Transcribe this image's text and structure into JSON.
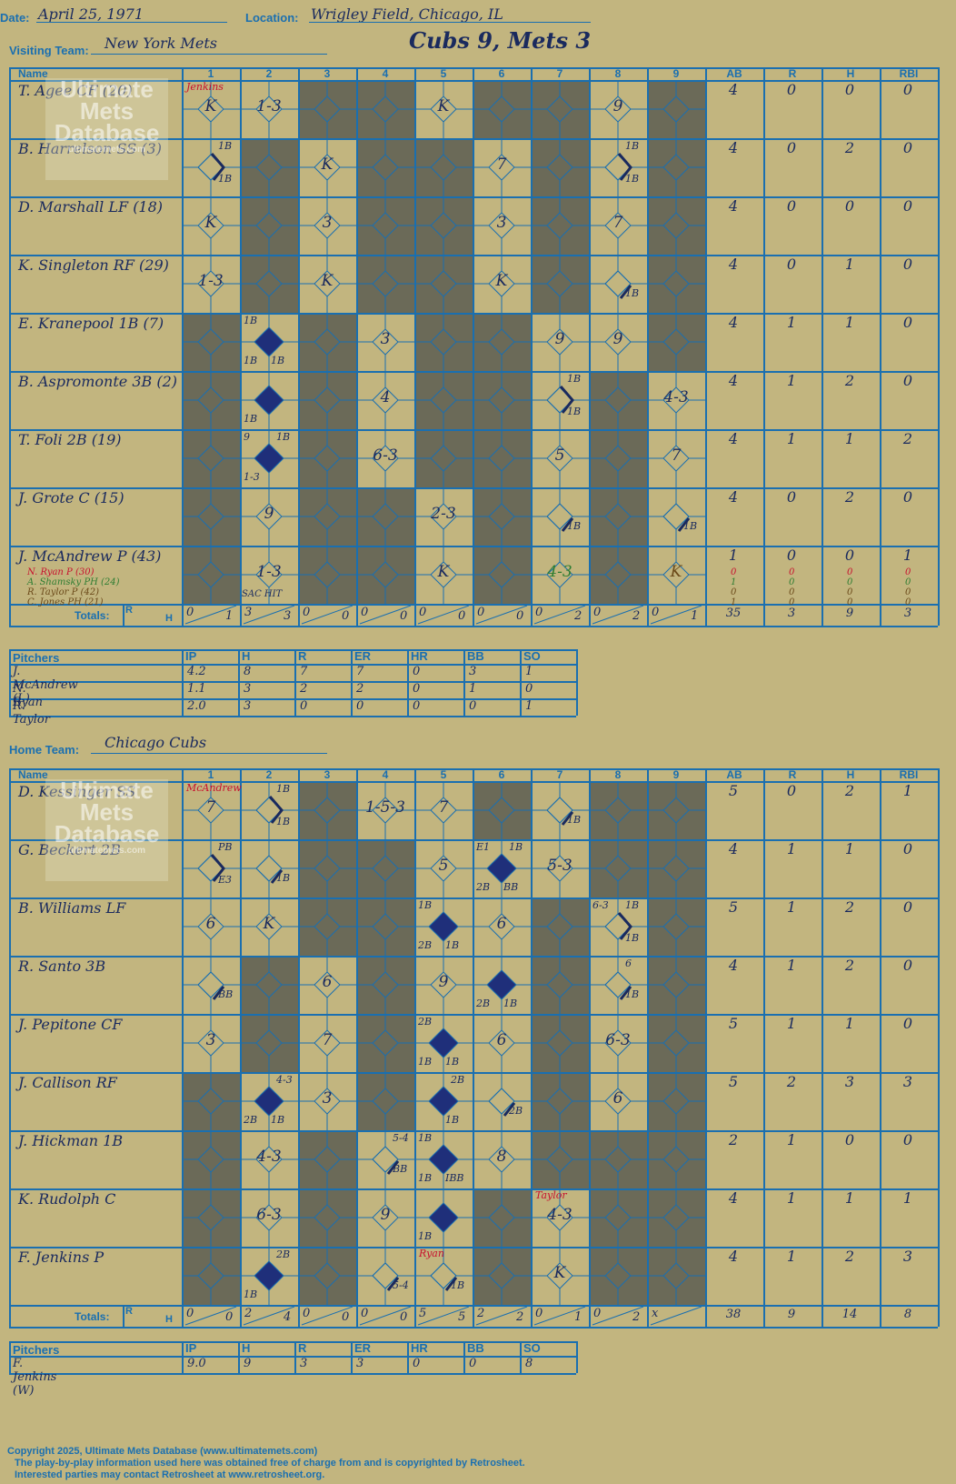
{
  "header": {
    "date_label": "Date:",
    "date_value": "April 25, 1971",
    "location_label": "Location:",
    "location_value": "Wrigley Field, Chicago, IL",
    "visiting_label": "Visiting Team:",
    "visiting_value": "New York Mets",
    "score_title": "Cubs 9, Mets 3",
    "home_label": "Home Team:",
    "home_value": "Chicago Cubs"
  },
  "watermark": {
    "line1": "Ultimate",
    "line2": "Mets",
    "line3": "Database",
    "site": "ultimatemets.com"
  },
  "columns": {
    "name": "Name",
    "innings": [
      "1",
      "2",
      "3",
      "4",
      "5",
      "6",
      "7",
      "8",
      "9"
    ],
    "stats": [
      "AB",
      "R",
      "H",
      "RBI"
    ],
    "totals": "Totals:",
    "r": "R",
    "h": "H"
  },
  "visitors": {
    "players": [
      {
        "name": "T. Agee CF (20)",
        "ab": "4",
        "r": "0",
        "h": "0",
        "rbi": "0"
      },
      {
        "name": "B. Harrelson SS (3)",
        "ab": "4",
        "r": "0",
        "h": "2",
        "rbi": "0"
      },
      {
        "name": "D. Marshall LF (18)",
        "ab": "4",
        "r": "0",
        "h": "0",
        "rbi": "0"
      },
      {
        "name": "K. Singleton RF (29)",
        "ab": "4",
        "r": "0",
        "h": "1",
        "rbi": "0"
      },
      {
        "name": "E. Kranepool 1B (7)",
        "ab": "4",
        "r": "1",
        "h": "1",
        "rbi": "0"
      },
      {
        "name": "B. Aspromonte 3B (2)",
        "ab": "4",
        "r": "1",
        "h": "2",
        "rbi": "0"
      },
      {
        "name": "T. Foli 2B (19)",
        "ab": "4",
        "r": "1",
        "h": "1",
        "rbi": "2"
      },
      {
        "name": "J. Grote C (15)",
        "ab": "4",
        "r": "0",
        "h": "2",
        "rbi": "0"
      },
      {
        "name": "J. McAndrew P (43)",
        "ab": "1",
        "r": "0",
        "h": "0",
        "rbi": "1"
      }
    ],
    "subs": [
      {
        "name": "N. Ryan P (30)",
        "color": "#c8102e",
        "ab": "0",
        "r": "0",
        "h": "0",
        "rbi": "0"
      },
      {
        "name": "A. Shamsky PH (24)",
        "color": "#2e7d32",
        "ab": "1",
        "r": "0",
        "h": "0",
        "rbi": "0"
      },
      {
        "name": "R. Taylor P (42)",
        "color": "#6b4a1a",
        "ab": "0",
        "r": "0",
        "h": "0",
        "rbi": "0"
      },
      {
        "name": "C. Jones PH (21)",
        "color": "#6b4a1a",
        "ab": "1",
        "r": "0",
        "h": "0",
        "rbi": "0"
      }
    ],
    "pitcher_change_note": "Jenkins",
    "totals": {
      "innings": [
        [
          "0",
          "1"
        ],
        [
          "3",
          "3"
        ],
        [
          "0",
          "0"
        ],
        [
          "0",
          "0"
        ],
        [
          "0",
          "0"
        ],
        [
          "0",
          "0"
        ],
        [
          "0",
          "2"
        ],
        [
          "0",
          "2"
        ],
        [
          "0",
          "1"
        ]
      ],
      "ab": "35",
      "r": "3",
      "h": "9",
      "rbi": "3"
    },
    "plays": [
      {
        "row": 0,
        "inn": 0,
        "text": "K"
      },
      {
        "row": 0,
        "inn": 1,
        "text": "1-3"
      },
      {
        "row": 0,
        "inn": 4,
        "text": "K"
      },
      {
        "row": 0,
        "inn": 7,
        "text": "9"
      },
      {
        "row": 1,
        "inn": 0,
        "hit": "1B",
        "extra": "1B"
      },
      {
        "row": 1,
        "inn": 2,
        "text": "K"
      },
      {
        "row": 1,
        "inn": 5,
        "text": "7"
      },
      {
        "row": 1,
        "inn": 7,
        "hit": "1B",
        "extra": "1B"
      },
      {
        "row": 2,
        "inn": 0,
        "text": "K"
      },
      {
        "row": 2,
        "inn": 2,
        "text": "3"
      },
      {
        "row": 2,
        "inn": 5,
        "text": "3"
      },
      {
        "row": 2,
        "inn": 7,
        "text": "7"
      },
      {
        "row": 3,
        "inn": 0,
        "text": "1-3"
      },
      {
        "row": 3,
        "inn": 2,
        "text": "K"
      },
      {
        "row": 3,
        "inn": 5,
        "text": "K"
      },
      {
        "row": 3,
        "inn": 7,
        "hit": "1B"
      },
      {
        "row": 4,
        "inn": 1,
        "run": true,
        "tl": "1B",
        "bl": "1B",
        "br": "1B"
      },
      {
        "row": 4,
        "inn": 3,
        "text": "3"
      },
      {
        "row": 4,
        "inn": 6,
        "text": "9"
      },
      {
        "row": 4,
        "inn": 7,
        "text": "9"
      },
      {
        "row": 5,
        "inn": 1,
        "run": true,
        "bl": "1B"
      },
      {
        "row": 5,
        "inn": 3,
        "text": "4"
      },
      {
        "row": 5,
        "inn": 6,
        "hit": "1B",
        "extra": "1B"
      },
      {
        "row": 5,
        "inn": 8,
        "text": "4-3"
      },
      {
        "row": 6,
        "inn": 1,
        "run": true,
        "tl": "9",
        "tr": "1B",
        "bl": "1-3"
      },
      {
        "row": 6,
        "inn": 3,
        "text": "6-3"
      },
      {
        "row": 6,
        "inn": 6,
        "text": "5"
      },
      {
        "row": 6,
        "inn": 8,
        "text": "7"
      },
      {
        "row": 7,
        "inn": 1,
        "text": "9"
      },
      {
        "row": 7,
        "inn": 4,
        "text": "2-3"
      },
      {
        "row": 7,
        "inn": 6,
        "hit": "1B"
      },
      {
        "row": 7,
        "inn": 8,
        "hit": "1B"
      },
      {
        "row": 8,
        "inn": 1,
        "text": "1-3",
        "note": "SAC HIT"
      },
      {
        "row": 8,
        "inn": 4,
        "text": "K"
      },
      {
        "row": 8,
        "inn": 6,
        "text": "4-3",
        "color": "#2e7d32"
      },
      {
        "row": 8,
        "inn": 8,
        "text": "K",
        "color": "#6b4a1a"
      }
    ]
  },
  "visitor_pitchers": {
    "heading": "Pitchers",
    "cols": [
      "IP",
      "H",
      "R",
      "ER",
      "HR",
      "BB",
      "SO"
    ],
    "rows": [
      {
        "name": "J. McAndrew (L)",
        "vals": [
          "4.2",
          "8",
          "7",
          "7",
          "0",
          "3",
          "1"
        ]
      },
      {
        "name": "N. Ryan",
        "vals": [
          "1.1",
          "3",
          "2",
          "2",
          "0",
          "1",
          "0"
        ]
      },
      {
        "name": "R. Taylor",
        "vals": [
          "2.0",
          "3",
          "0",
          "0",
          "0",
          "0",
          "1"
        ]
      }
    ]
  },
  "home": {
    "players": [
      {
        "name": "D. Kessinger SS",
        "ab": "5",
        "r": "0",
        "h": "2",
        "rbi": "1"
      },
      {
        "name": "G. Beckert 2B",
        "ab": "4",
        "r": "1",
        "h": "1",
        "rbi": "0"
      },
      {
        "name": "B. Williams LF",
        "ab": "5",
        "r": "1",
        "h": "2",
        "rbi": "0"
      },
      {
        "name": "R. Santo 3B",
        "ab": "4",
        "r": "1",
        "h": "2",
        "rbi": "0"
      },
      {
        "name": "J. Pepitone CF",
        "ab": "5",
        "r": "1",
        "h": "1",
        "rbi": "0"
      },
      {
        "name": "J. Callison RF",
        "ab": "5",
        "r": "2",
        "h": "3",
        "rbi": "3"
      },
      {
        "name": "J. Hickman 1B",
        "ab": "2",
        "r": "1",
        "h": "0",
        "rbi": "0"
      },
      {
        "name": "K. Rudolph C",
        "ab": "4",
        "r": "1",
        "h": "1",
        "rbi": "1"
      },
      {
        "name": "F. Jenkins P",
        "ab": "4",
        "r": "1",
        "h": "2",
        "rbi": "3"
      }
    ],
    "pitcher_change_notes": {
      "mcandrew": "McAndrew",
      "ryan": "Ryan",
      "taylor": "Taylor"
    },
    "totals": {
      "innings": [
        [
          "0",
          "0"
        ],
        [
          "2",
          "4"
        ],
        [
          "0",
          "0"
        ],
        [
          "0",
          "0"
        ],
        [
          "5",
          "5"
        ],
        [
          "2",
          "2"
        ],
        [
          "0",
          "1"
        ],
        [
          "0",
          "2"
        ],
        [
          "x",
          ""
        ]
      ],
      "ab": "38",
      "r": "9",
      "h": "14",
      "rbi": "8"
    },
    "plays": [
      {
        "row": 0,
        "inn": 0,
        "text": "7"
      },
      {
        "row": 0,
        "inn": 1,
        "hit": "1B",
        "extra": "1B"
      },
      {
        "row": 0,
        "inn": 3,
        "text": "1-5-3"
      },
      {
        "row": 0,
        "inn": 4,
        "text": "7"
      },
      {
        "row": 0,
        "inn": 6,
        "hit": "1B"
      },
      {
        "row": 1,
        "inn": 0,
        "hit": "PB",
        "extra": "E3"
      },
      {
        "row": 1,
        "inn": 1,
        "hit": "1B"
      },
      {
        "row": 1,
        "inn": 4,
        "text": "5"
      },
      {
        "row": 1,
        "inn": 5,
        "run": true,
        "tl": "E1",
        "tr": "1B",
        "bl": "2B",
        "br": "BB"
      },
      {
        "row": 1,
        "inn": 6,
        "text": "5-3"
      },
      {
        "row": 2,
        "inn": 0,
        "text": "6"
      },
      {
        "row": 2,
        "inn": 1,
        "text": "K"
      },
      {
        "row": 2,
        "inn": 4,
        "run": true,
        "tl": "1B",
        "bl": "2B",
        "br": "1B"
      },
      {
        "row": 2,
        "inn": 5,
        "text": "6"
      },
      {
        "row": 2,
        "inn": 7,
        "hit": "1B",
        "extra": "1B",
        "tl": "6-3"
      },
      {
        "row": 3,
        "inn": 0,
        "hit": "BB"
      },
      {
        "row": 3,
        "inn": 2,
        "text": "6"
      },
      {
        "row": 3,
        "inn": 4,
        "text": "9"
      },
      {
        "row": 3,
        "inn": 5,
        "run": true,
        "bl": "2B",
        "br": "1B"
      },
      {
        "row": 3,
        "inn": 7,
        "hit": "1B",
        "tr": "6"
      },
      {
        "row": 4,
        "inn": 0,
        "text": "3"
      },
      {
        "row": 4,
        "inn": 2,
        "text": "7"
      },
      {
        "row": 4,
        "inn": 4,
        "run": true,
        "tl": "2B",
        "bl": "1B",
        "br": "1B"
      },
      {
        "row": 4,
        "inn": 5,
        "text": "6"
      },
      {
        "row": 4,
        "inn": 7,
        "text": "6-3"
      },
      {
        "row": 5,
        "inn": 1,
        "run": true,
        "tr": "4-3",
        "bl": "2B",
        "br": "1B"
      },
      {
        "row": 5,
        "inn": 2,
        "text": "3"
      },
      {
        "row": 5,
        "inn": 4,
        "run": true,
        "tr": "2B",
        "br": "1B"
      },
      {
        "row": 5,
        "inn": 5,
        "hit": "2B"
      },
      {
        "row": 5,
        "inn": 7,
        "text": "6"
      },
      {
        "row": 6,
        "inn": 1,
        "text": "4-3"
      },
      {
        "row": 6,
        "inn": 3,
        "hit": "BB",
        "tr": "5-4"
      },
      {
        "row": 6,
        "inn": 4,
        "run": true,
        "tl": "1B",
        "bl": "1B",
        "br": "IBB"
      },
      {
        "row": 6,
        "inn": 5,
        "text": "8"
      },
      {
        "row": 7,
        "inn": 1,
        "text": "6-3"
      },
      {
        "row": 7,
        "inn": 3,
        "text": "9"
      },
      {
        "row": 7,
        "inn": 4,
        "run": true,
        "bl": "1B"
      },
      {
        "row": 7,
        "inn": 6,
        "text": "4-3"
      },
      {
        "row": 8,
        "inn": 1,
        "run": true,
        "tr": "2B",
        "bl": "1B"
      },
      {
        "row": 8,
        "inn": 3,
        "hit": "5-4"
      },
      {
        "row": 8,
        "inn": 4,
        "hit": "1B"
      },
      {
        "row": 8,
        "inn": 6,
        "text": "K"
      }
    ]
  },
  "home_pitchers": {
    "heading": "Pitchers",
    "cols": [
      "IP",
      "H",
      "R",
      "ER",
      "HR",
      "BB",
      "SO"
    ],
    "rows": [
      {
        "name": "F. Jenkins (W)",
        "vals": [
          "9.0",
          "9",
          "3",
          "3",
          "0",
          "0",
          "8"
        ]
      }
    ]
  },
  "footer": {
    "line1": "Copyright 2025, Ultimate Mets Database (www.ultimatemets.com)",
    "line2": "The play-by-play information used here was obtained free of charge from and is copyrighted by Retrosheet.",
    "line3": "Interested parties may contact Retrosheet at www.retrosheet.org."
  },
  "colors": {
    "line": "#1a6fb0",
    "ink": "#1a2a5e",
    "shade": "#6b6a58",
    "paper": "#c2b57f",
    "note_red": "#c8102e"
  }
}
